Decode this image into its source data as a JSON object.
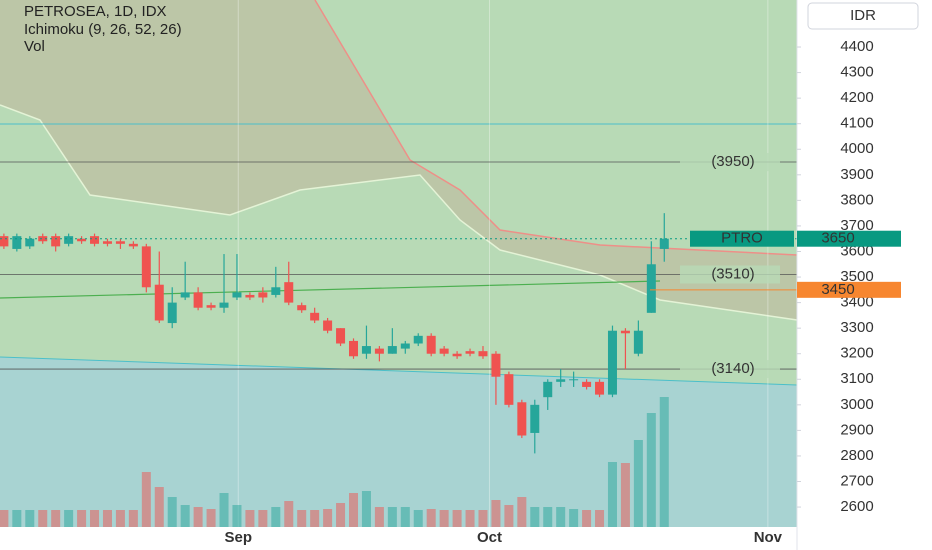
{
  "chart_data": {
    "type": "candlestick",
    "title": "PETROSEA, 1D, IDX",
    "indicators": [
      "Ichimoku (9, 26, 52, 26)",
      "Vol"
    ],
    "currency": "IDR",
    "x": [
      0,
      1,
      2,
      3,
      4,
      5,
      6,
      7,
      8,
      9,
      10,
      11,
      12,
      13,
      14,
      15,
      16,
      17,
      18,
      19,
      20,
      21,
      22,
      23,
      24,
      25,
      26,
      27,
      28,
      29,
      30,
      31,
      32,
      33,
      34,
      35,
      36,
      37,
      38,
      39,
      40,
      41,
      42,
      43,
      44,
      45,
      46,
      47,
      48,
      49,
      50,
      51
    ],
    "open": [
      3660,
      3610,
      3620,
      3660,
      3660,
      3630,
      3650,
      3660,
      3640,
      3640,
      3630,
      3620,
      3470,
      3320,
      3420,
      3440,
      3390,
      3380,
      3420,
      3430,
      3440,
      3430,
      3480,
      3390,
      3360,
      3330,
      3300,
      3250,
      3200,
      3220,
      3200,
      3220,
      3240,
      3270,
      3220,
      3200,
      3210,
      3210,
      3200,
      3120,
      3010,
      2890,
      3030,
      3090,
      3100,
      3090,
      3090,
      3040,
      3290,
      3200,
      3360,
      3610
    ],
    "high": [
      3670,
      3670,
      3660,
      3670,
      3670,
      3670,
      3660,
      3670,
      3650,
      3650,
      3640,
      3630,
      3600,
      3460,
      3560,
      3460,
      3400,
      3590,
      3590,
      3440,
      3460,
      3540,
      3560,
      3400,
      3380,
      3340,
      3300,
      3260,
      3310,
      3230,
      3300,
      3250,
      3280,
      3280,
      3230,
      3210,
      3220,
      3230,
      3210,
      3130,
      3020,
      3020,
      3100,
      3140,
      3130,
      3100,
      3100,
      3310,
      3300,
      3330,
      3640,
      3750
    ],
    "low": [
      3610,
      3600,
      3610,
      3630,
      3600,
      3620,
      3630,
      3620,
      3620,
      3610,
      3610,
      3440,
      3320,
      3300,
      3410,
      3370,
      3370,
      3360,
      3410,
      3410,
      3400,
      3420,
      3390,
      3360,
      3320,
      3280,
      3230,
      3180,
      3180,
      3170,
      3200,
      3200,
      3230,
      3190,
      3190,
      3180,
      3190,
      3180,
      3000,
      2990,
      2870,
      2810,
      2980,
      3070,
      3070,
      3060,
      3030,
      3030,
      3140,
      3190,
      3360,
      3560
    ],
    "close": [
      3620,
      3660,
      3650,
      3640,
      3620,
      3660,
      3640,
      3630,
      3630,
      3630,
      3620,
      3460,
      3330,
      3400,
      3440,
      3380,
      3380,
      3400,
      3440,
      3420,
      3420,
      3460,
      3400,
      3370,
      3330,
      3290,
      3240,
      3190,
      3230,
      3200,
      3230,
      3240,
      3270,
      3200,
      3200,
      3190,
      3200,
      3190,
      3110,
      3000,
      2880,
      3000,
      3090,
      3100,
      3100,
      3070,
      3040,
      3290,
      3280,
      3290,
      3550,
      3650
    ],
    "volume": [
      17,
      17,
      17,
      17,
      17,
      17,
      17,
      17,
      17,
      17,
      17,
      55,
      40,
      30,
      22,
      20,
      18,
      34,
      22,
      17,
      17,
      20,
      26,
      17,
      17,
      18,
      24,
      34,
      36,
      20,
      20,
      20,
      17,
      18,
      17,
      17,
      17,
      17,
      27,
      22,
      30,
      20,
      20,
      20,
      18,
      17,
      17,
      65,
      64,
      87,
      114,
      130
    ],
    "volume_lim": [
      0,
      527
    ],
    "up_color": "#26a69a",
    "down_color": "#ef5350",
    "xlim": [
      -0.3,
      61.25
    ],
    "xticks": [
      {
        "value": 18.1,
        "label": "Sep"
      },
      {
        "value": 37.5,
        "label": "Oct"
      },
      {
        "value": 59.0,
        "label": "Nov"
      }
    ],
    "ylim": [
      2522,
      4584
    ],
    "yticks": [
      2600,
      2700,
      2800,
      2900,
      3000,
      3100,
      3200,
      3300,
      3400,
      3500,
      3600,
      3700,
      3800,
      3900,
      4000,
      4100,
      4200,
      4300,
      4400
    ],
    "levels": [
      {
        "value": 3950,
        "label": "(3950)"
      },
      {
        "value": 3510,
        "label": "(3510)"
      },
      {
        "value": 3140,
        "label": "(3140)"
      }
    ],
    "last_price": {
      "symbol": "PTRO",
      "value": 3650,
      "color": "#089981"
    },
    "ichimoku_price": {
      "value": 3450,
      "color": "#f7862f"
    }
  }
}
